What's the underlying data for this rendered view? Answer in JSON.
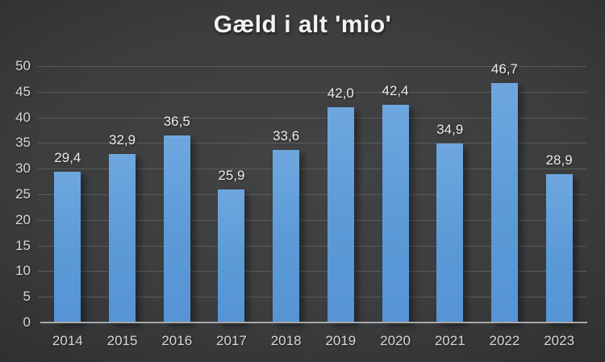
{
  "chart": {
    "title": "Gæld i alt 'mio'",
    "colors": {
      "background_center": "#414345",
      "background_edge": "#232323",
      "bar_fill": "#5B9BD5",
      "gridline": "#5A5B5C",
      "axis_line": "#A8A8A8",
      "tick_label": "#D6D6D6",
      "data_label": "#EBEBEB",
      "title_text": "#F2F2F2"
    }
  },
  "chart_data": {
    "type": "bar",
    "title": "Gæld i alt 'mio'",
    "categories": [
      "2014",
      "2015",
      "2016",
      "2017",
      "2018",
      "2019",
      "2020",
      "2021",
      "2022",
      "2023"
    ],
    "values": [
      29.4,
      32.9,
      36.5,
      25.9,
      33.6,
      42.0,
      42.4,
      34.9,
      46.7,
      28.9
    ],
    "value_labels": [
      "29,4",
      "32,9",
      "36,5",
      "25,9",
      "33,6",
      "42,0",
      "42,4",
      "34,9",
      "46,7",
      "28,9"
    ],
    "xlabel": "",
    "ylabel": "",
    "ylim": [
      0,
      50
    ],
    "ytick_step": 5,
    "ytick_labels": [
      "0",
      "5",
      "10",
      "15",
      "20",
      "25",
      "30",
      "35",
      "40",
      "45",
      "50"
    ],
    "grid": true,
    "legend": false,
    "decimal_separator": ","
  }
}
